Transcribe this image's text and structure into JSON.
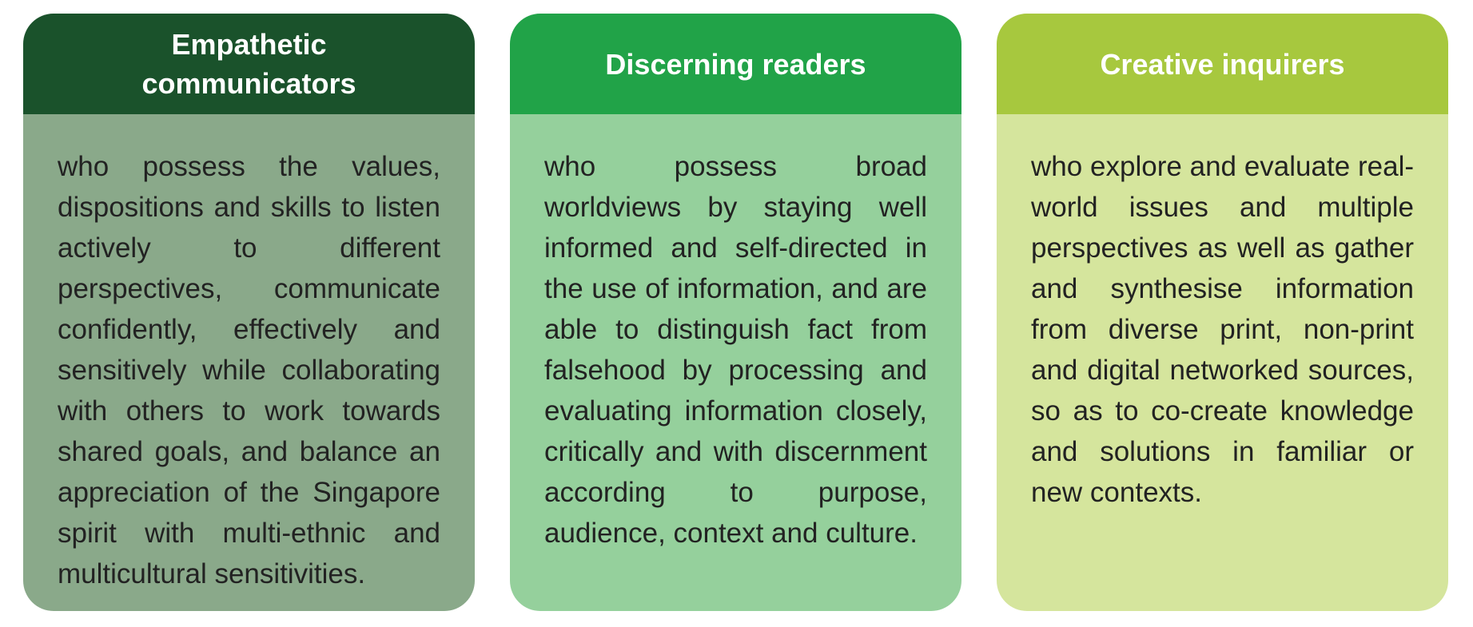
{
  "cards": [
    {
      "title_lines": [
        "Empathetic",
        "communicators"
      ],
      "text": "who possess the values, dispositions and skills to listen actively to different perspectives, communicate confidently, effectively and sensitively while collaborating with others to work towards shared goals, and balance an appreciation of the Singapore spirit with multi-ethnic and multicultural sensitivities."
    },
    {
      "title_lines": [
        "Discerning readers"
      ],
      "text": "who possess broad worldviews by staying well informed and self-directed in the use of information, and are able to distinguish fact from falsehood by processing and evaluating information closely, critically and with discernment according to purpose, audience, context and culture."
    },
    {
      "title_lines": [
        "Creative inquirers"
      ],
      "text": "who explore and evaluate real-world issues and multiple perspectives as well as gather and synthesise information from diverse print, non-print and digital networked sources, so as to co-create knowledge and solutions in familiar or new contexts."
    }
  ],
  "colors": {
    "card_1_header": "#1a522b",
    "card_1_body": "#8aa98a",
    "card_2_header": "#21a348",
    "card_2_body": "#95d09c",
    "card_3_header": "#a7c83e",
    "card_3_body": "#d5e59d"
  }
}
